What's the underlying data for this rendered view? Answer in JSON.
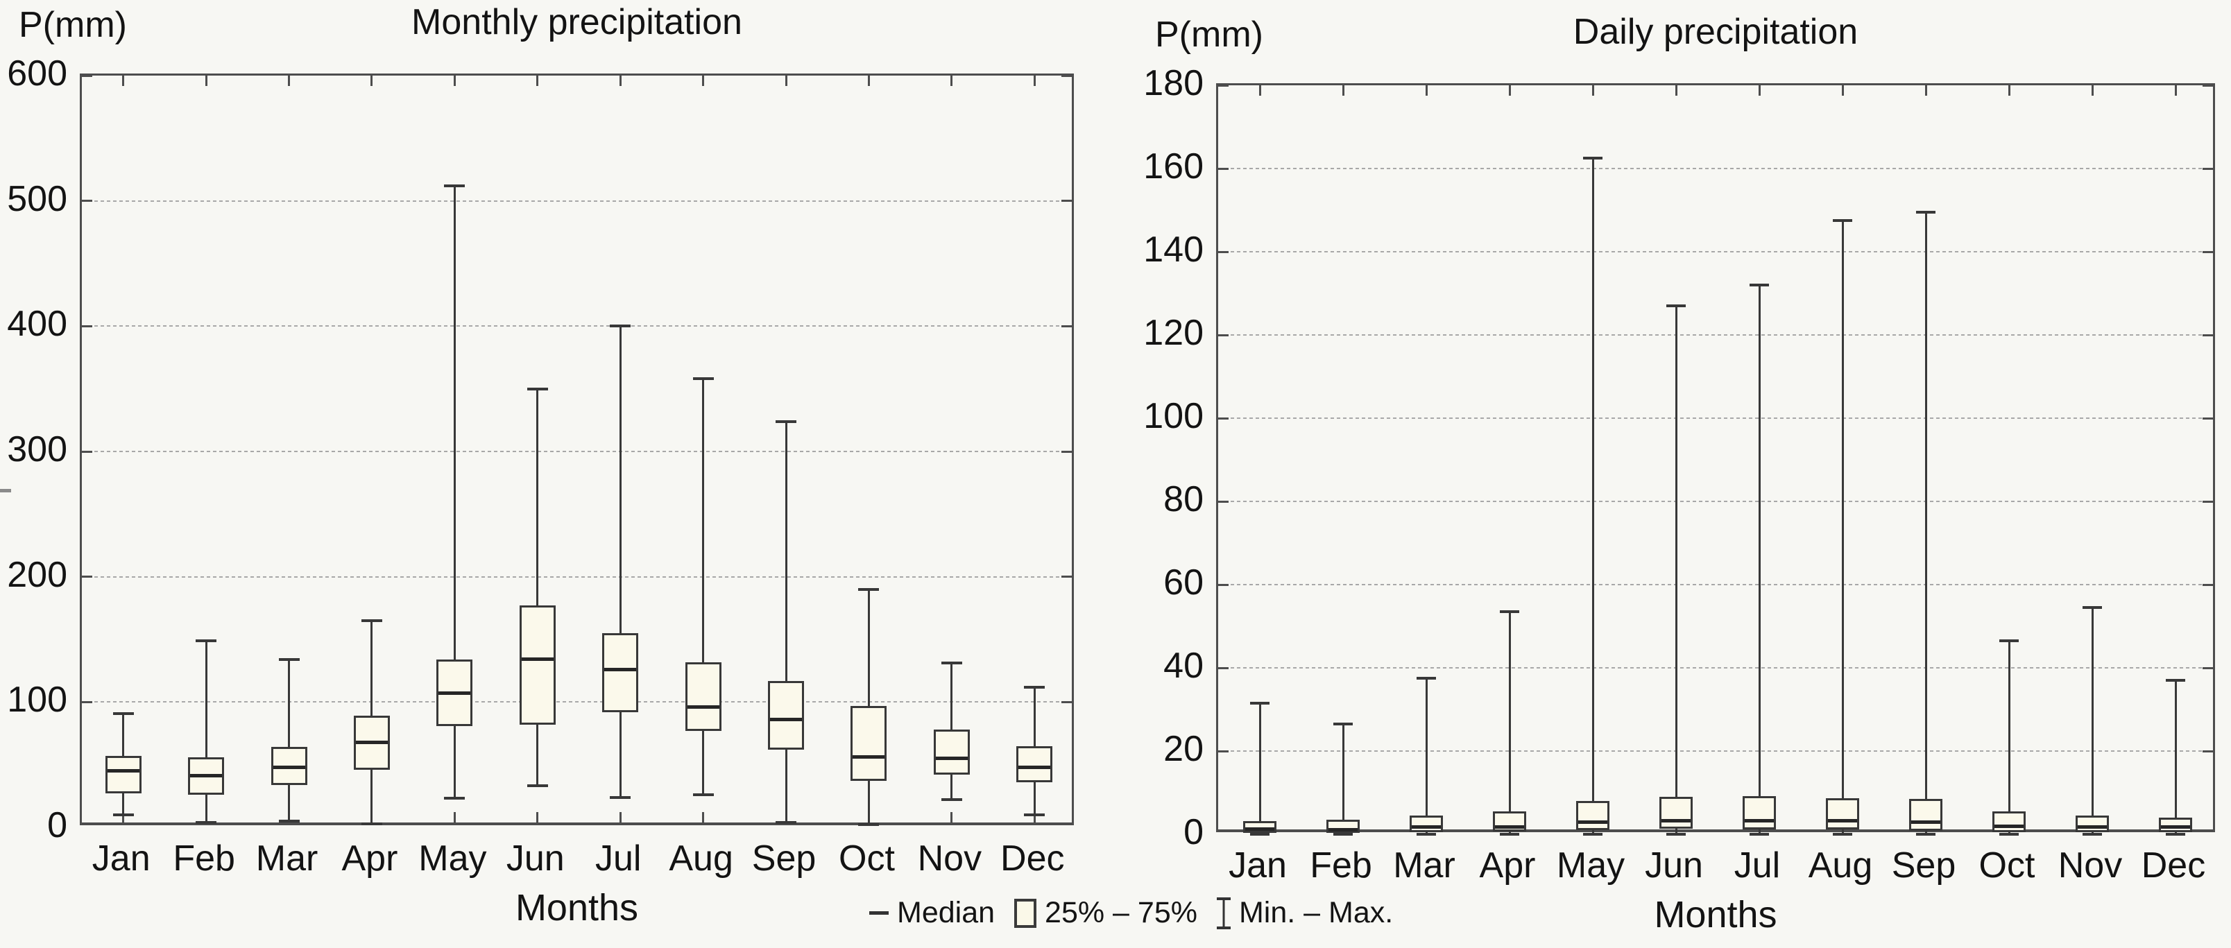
{
  "colors": {
    "background": "#f7f7f3",
    "box_border": "#383838",
    "box_fill": "#fbf9eb",
    "median_line": "#262626",
    "axis": "#4d4d4d",
    "gridline": "#a8a8a8",
    "text": "#131313"
  },
  "legend": {
    "items": [
      {
        "symbol": "median-line",
        "label": "Median"
      },
      {
        "symbol": "iqr-box",
        "label": "25% – 75%"
      },
      {
        "symbol": "min-max-whisker",
        "label": "Min. – Max."
      }
    ]
  },
  "chart_data": [
    {
      "type": "boxplot",
      "title": "Monthly precipitation",
      "ylabel": "P(mm)",
      "xlabel": "Months",
      "ylim": [
        0,
        600
      ],
      "yticks": [
        0,
        100,
        200,
        300,
        400,
        500,
        600
      ],
      "grid": "horizontal-dotted",
      "legend_position": "bottom-center",
      "categories": [
        "Jan",
        "Feb",
        "Mar",
        "Apr",
        "May",
        "Jun",
        "Jul",
        "Aug",
        "Sep",
        "Oct",
        "Nov",
        "Dec"
      ],
      "series": [
        {
          "month": "Jan",
          "min": 10,
          "q1": 27,
          "median": 45,
          "q3": 57,
          "max": 91
        },
        {
          "month": "Feb",
          "min": 4,
          "q1": 26,
          "median": 41,
          "q3": 56,
          "max": 149
        },
        {
          "month": "Mar",
          "min": 5,
          "q1": 34,
          "median": 48,
          "q3": 64,
          "max": 134
        },
        {
          "month": "Apr",
          "min": 3,
          "q1": 46,
          "median": 68,
          "q3": 89,
          "max": 165
        },
        {
          "month": "May",
          "min": 23,
          "q1": 81,
          "median": 107,
          "q3": 134,
          "max": 512
        },
        {
          "month": "Jun",
          "min": 33,
          "q1": 82,
          "median": 134,
          "q3": 177,
          "max": 350
        },
        {
          "month": "Jul",
          "min": 24,
          "q1": 92,
          "median": 126,
          "q3": 155,
          "max": 400
        },
        {
          "month": "Aug",
          "min": 26,
          "q1": 77,
          "median": 96,
          "q3": 132,
          "max": 358
        },
        {
          "month": "Sep",
          "min": 4,
          "q1": 62,
          "median": 86,
          "q3": 117,
          "max": 324
        },
        {
          "month": "Oct",
          "min": 2,
          "q1": 37,
          "median": 56,
          "q3": 97,
          "max": 190
        },
        {
          "month": "Nov",
          "min": 22,
          "q1": 42,
          "median": 55,
          "q3": 78,
          "max": 131
        },
        {
          "month": "Dec",
          "min": 10,
          "q1": 36,
          "median": 48,
          "q3": 65,
          "max": 112
        }
      ]
    },
    {
      "type": "boxplot",
      "title": "Daily precipitation",
      "ylabel": "P(mm)",
      "xlabel": "Months",
      "ylim": [
        0,
        180
      ],
      "yticks": [
        0,
        20,
        40,
        60,
        80,
        100,
        120,
        140,
        160,
        180
      ],
      "grid": "horizontal-dotted",
      "legend_position": "bottom-center",
      "categories": [
        "Jan",
        "Feb",
        "Mar",
        "Apr",
        "May",
        "Jun",
        "Jul",
        "Aug",
        "Sep",
        "Oct",
        "Nov",
        "Dec"
      ],
      "series": [
        {
          "month": "Jan",
          "min": 0,
          "q1": 0.4,
          "median": 1.3,
          "q3": 3.2,
          "max": 31.5
        },
        {
          "month": "Feb",
          "min": 0,
          "q1": 0.3,
          "median": 1.1,
          "q3": 3.5,
          "max": 26.5
        },
        {
          "month": "Mar",
          "min": 0,
          "q1": 0.5,
          "median": 1.8,
          "q3": 4.5,
          "max": 37.5
        },
        {
          "month": "Apr",
          "min": 0,
          "q1": 0.6,
          "median": 1.8,
          "q3": 5.5,
          "max": 53.5
        },
        {
          "month": "May",
          "min": 0,
          "q1": 1.0,
          "median": 3.0,
          "q3": 8.0,
          "max": 162.5
        },
        {
          "month": "Jun",
          "min": 0,
          "q1": 1.3,
          "median": 3.3,
          "q3": 9.0,
          "max": 127
        },
        {
          "month": "Jul",
          "min": 0,
          "q1": 1.2,
          "median": 3.3,
          "q3": 9.2,
          "max": 132
        },
        {
          "month": "Aug",
          "min": 0,
          "q1": 1.1,
          "median": 3.2,
          "q3": 8.6,
          "max": 147.5
        },
        {
          "month": "Sep",
          "min": 0,
          "q1": 0.8,
          "median": 3.0,
          "q3": 8.5,
          "max": 149.5
        },
        {
          "month": "Oct",
          "min": 0,
          "q1": 0.5,
          "median": 2.0,
          "q3": 5.5,
          "max": 46.5
        },
        {
          "month": "Nov",
          "min": 0,
          "q1": 0.5,
          "median": 1.7,
          "q3": 4.5,
          "max": 54.5
        },
        {
          "month": "Dec",
          "min": 0,
          "q1": 0.5,
          "median": 1.7,
          "q3": 4.0,
          "max": 37
        }
      ]
    }
  ]
}
